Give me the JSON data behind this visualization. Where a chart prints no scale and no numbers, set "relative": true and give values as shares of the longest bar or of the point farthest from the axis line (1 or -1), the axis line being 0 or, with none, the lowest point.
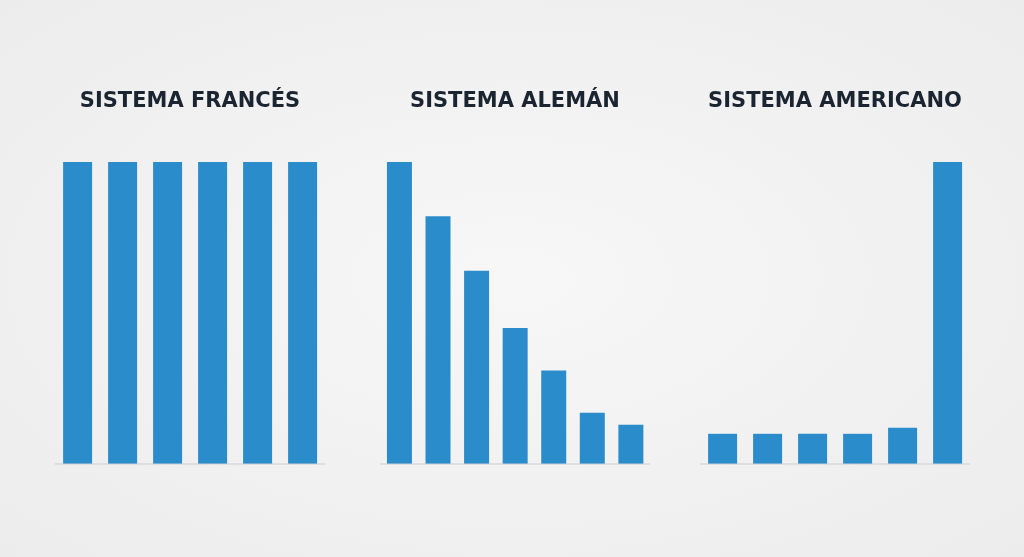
{
  "chart_data": [
    {
      "type": "bar",
      "title": "SISTEMA FRANCÉS",
      "categories": [
        null,
        null,
        null,
        null,
        null,
        null
      ],
      "values": [
        1,
        1,
        1,
        1,
        1,
        1
      ],
      "color": "#2b8ccb",
      "relative": true
    },
    {
      "type": "bar",
      "title": "SISTEMA ALEMÁN",
      "categories": [
        null,
        null,
        null,
        null,
        null,
        null,
        null
      ],
      "values": [
        1,
        0.82,
        0.64,
        0.45,
        0.31,
        0.17,
        0.13
      ],
      "color": "#2b8ccb",
      "relative": true
    },
    {
      "type": "bar",
      "title": "SISTEMA AMERICANO",
      "categories": [
        null,
        null,
        null,
        null,
        null,
        null
      ],
      "values": [
        0.1,
        0.1,
        0.1,
        0.1,
        0.12,
        1
      ],
      "color": "#2b8ccb",
      "relative": true
    }
  ]
}
